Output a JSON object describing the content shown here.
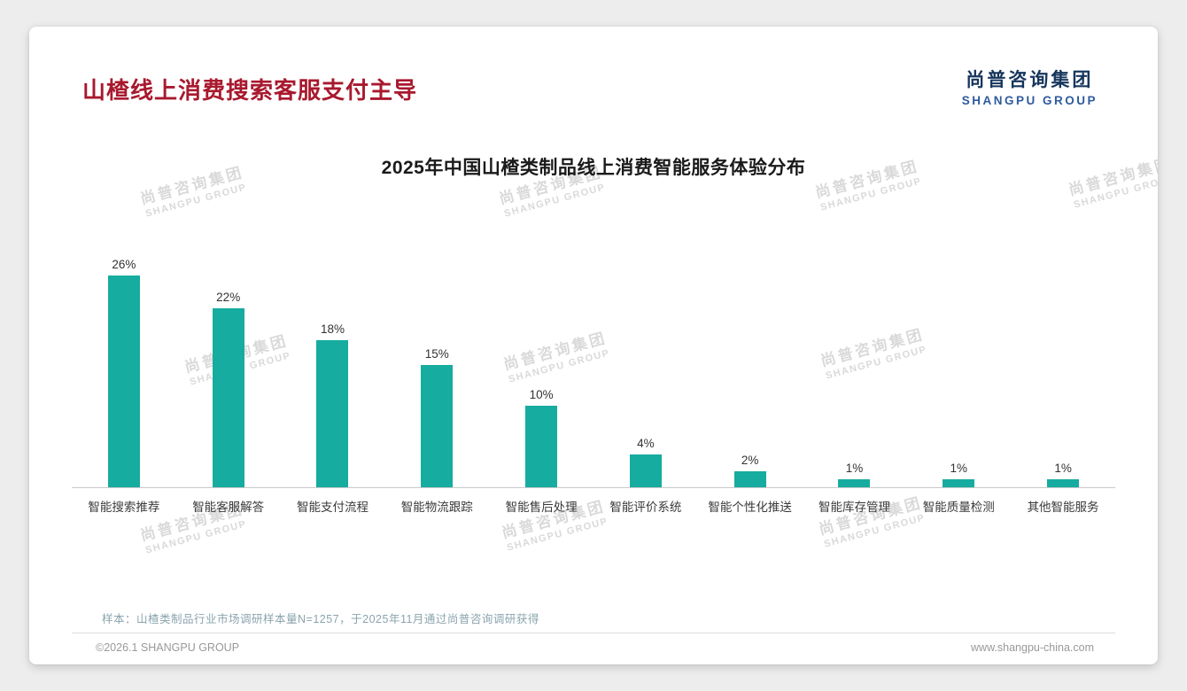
{
  "slide": {
    "title": "山楂线上消费搜索客服支付主导",
    "logo": {
      "cn": "尚普咨询集团",
      "en": "SHANGPU GROUP"
    },
    "sample_note": "样本：山楂类制品行业市场调研样本量N=1257，于2025年11月通过尚普咨询调研获得",
    "footer": {
      "left": "©2026.1 SHANGPU GROUP",
      "right": "www.shangpu-china.com"
    }
  },
  "watermark": {
    "line1": "尚普咨询集团",
    "line2": "SHANGPU GROUP"
  },
  "colors": {
    "bar": "#16aca0",
    "title": "#a8192e",
    "note": "#8aa4ad",
    "logo_cn": "#17365d",
    "logo_en": "#2e5b9f"
  },
  "chart_data": {
    "type": "bar",
    "title": "2025年中国山楂类制品线上消费智能服务体验分布",
    "categories": [
      "智能搜索推荐",
      "智能客服解答",
      "智能支付流程",
      "智能物流跟踪",
      "智能售后处理",
      "智能评价系统",
      "智能个性化推送",
      "智能库存管理",
      "智能质量检测",
      "其他智能服务"
    ],
    "values": [
      26,
      22,
      18,
      15,
      10,
      4,
      2,
      1,
      1,
      1
    ],
    "unit": "%",
    "xlabel": "",
    "ylabel": "",
    "ylim": [
      0,
      28
    ],
    "grid": false,
    "legend": false,
    "data_labels": true
  }
}
